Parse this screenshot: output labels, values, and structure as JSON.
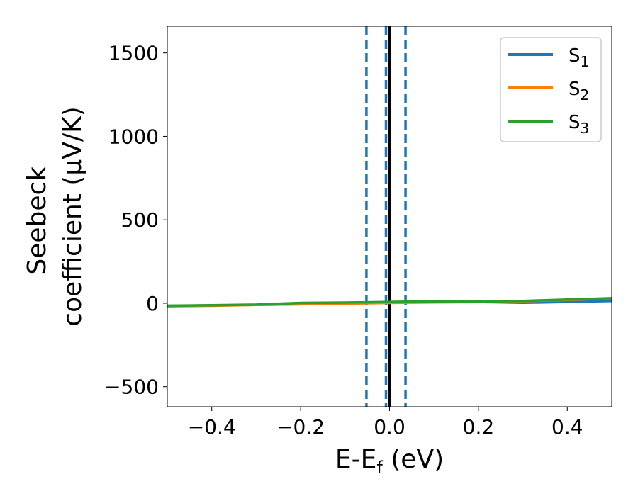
{
  "chart_data": {
    "type": "line",
    "xlabel": {
      "main": "E-E",
      "sub": "f",
      "unit": " (eV)"
    },
    "ylabel": {
      "line1": "Seebeck",
      "line2": "coefficient  (μV/K)"
    },
    "xlim": [
      -0.5,
      0.5
    ],
    "ylim": [
      -620,
      1660
    ],
    "xticks": [
      -0.4,
      -0.2,
      0.0,
      0.2,
      0.4
    ],
    "xtick_labels": [
      "−0.4",
      "−0.2",
      "0.0",
      "0.2",
      "0.4"
    ],
    "yticks": [
      -500,
      0,
      500,
      1000,
      1500
    ],
    "ytick_labels": [
      "−500",
      "0",
      "500",
      "1000",
      "1500"
    ],
    "grid": false,
    "legend_position": "top-right",
    "series": [
      {
        "name": "S",
        "sub": "1",
        "color": "#1f77b4",
        "x": [
          -0.5,
          -0.4,
          -0.3,
          -0.2,
          -0.1,
          0.0,
          0.1,
          0.2,
          0.3,
          0.4,
          0.5
        ],
        "y": [
          -15,
          -13,
          -10,
          -6,
          -2,
          5,
          10,
          8,
          3,
          8,
          14
        ]
      },
      {
        "name": "S",
        "sub": "2",
        "color": "#ff7f0e",
        "x": [
          -0.5,
          -0.4,
          -0.3,
          -0.2,
          -0.1,
          0.0,
          0.1,
          0.2,
          0.3,
          0.4,
          0.5
        ],
        "y": [
          -18,
          -15,
          -10,
          -5,
          -2,
          2,
          5,
          7,
          12,
          20,
          28
        ]
      },
      {
        "name": "S",
        "sub": "3",
        "color": "#2ca02c",
        "x": [
          -0.5,
          -0.4,
          -0.3,
          -0.2,
          -0.1,
          0.0,
          0.1,
          0.2,
          0.3,
          0.4,
          0.5
        ],
        "y": [
          -15,
          -12,
          -8,
          2,
          4,
          8,
          12,
          10,
          14,
          22,
          30
        ]
      }
    ],
    "vlines": [
      {
        "x": -0.052,
        "style": "dashed",
        "color": "#1f77b4"
      },
      {
        "x": -0.008,
        "style": "dashed",
        "color": "#1f77b4"
      },
      {
        "x": 0.036,
        "style": "dashed",
        "color": "#1f77b4"
      },
      {
        "x": 0.0,
        "style": "solid",
        "color": "#000000"
      }
    ]
  }
}
